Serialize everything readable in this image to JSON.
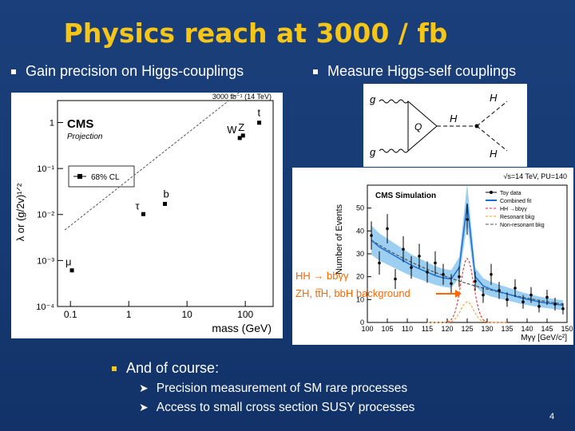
{
  "slide": {
    "title": "Physics reach at 3000 / fb",
    "bullet_left": "Gain precision on Higgs-couplings",
    "bullet_right": "Measure Higgs-self couplings",
    "main_bullet": "And of course:",
    "sub_bullets": [
      "Precision measurement of SM rare processes",
      "Access to small cross section SUSY processes"
    ],
    "page_number": "4"
  },
  "colors": {
    "title": "#f5c518",
    "background": "#1b3f7a",
    "annotation": "#ff6600"
  },
  "coupling_plot": {
    "header": "3000 fb⁻¹ (14 TeV)",
    "brand": "CMS",
    "subtitle": "Projection",
    "legend": "68% CL",
    "ylabel": "λ or (g/2v)¹ᐟ²",
    "xlabel": "mass (GeV)",
    "x_ticks": [
      "0.1",
      "1",
      "10",
      "100"
    ],
    "y_ticks": [
      "1",
      "10⁻¹",
      "10⁻²",
      "10⁻³",
      "10⁻⁴"
    ]
  },
  "feynman": {
    "g_top": "g",
    "g_bottom": "g",
    "quark": "Q",
    "h_mid": "H",
    "h_top": "H",
    "h_bottom": "H"
  },
  "sim_plot": {
    "header": "√s=14 TeV, PU=140",
    "brand": "CMS Simulation",
    "ylabel": "Number of Events",
    "xlabel": "Mγγ [GeV/c²]",
    "legend": [
      "Toy data",
      "Combined fit",
      "HH →bbγγ",
      "Resonant bkg",
      "Non-resonant bkg"
    ],
    "annotation_1": "HH → bbγγ",
    "annotation_2": "ZH, tt̅H, bbH background",
    "x_ticks": [
      "100",
      "105",
      "110",
      "115",
      "120",
      "125",
      "130",
      "135",
      "140",
      "145",
      "150"
    ],
    "y_ticks": [
      "0",
      "10",
      "20",
      "30",
      "40",
      "50"
    ]
  },
  "chart_data": [
    {
      "type": "scatter",
      "title": "CMS Projection 3000 fb-1 (14 TeV)",
      "xlabel": "mass (GeV)",
      "ylabel": "lambda or (g/2v)^1/2",
      "xscale": "log",
      "yscale": "log",
      "xlim": [
        0.06,
        300
      ],
      "ylim": [
        0.0001,
        3
      ],
      "points": [
        {
          "label": "μ",
          "x": 0.106,
          "y": 0.00061
        },
        {
          "label": "τ",
          "x": 1.78,
          "y": 0.0102
        },
        {
          "label": "b",
          "x": 4.18,
          "y": 0.017
        },
        {
          "label": "W",
          "x": 80.4,
          "y": 0.46
        },
        {
          "label": "Z",
          "x": 91.2,
          "y": 0.52
        },
        {
          "label": "t",
          "x": 173,
          "y": 0.99
        }
      ],
      "legend": "68% CL"
    },
    {
      "type": "scatter",
      "title": "CMS Simulation",
      "xlabel": "Mγγ [GeV/c²]",
      "ylabel": "Number of Events",
      "xlim": [
        100,
        150
      ],
      "ylim": [
        0,
        60
      ],
      "x": [
        101,
        103,
        105,
        107,
        109,
        111,
        113,
        115,
        117,
        119,
        121,
        123,
        125,
        127,
        129,
        131,
        133,
        135,
        137,
        139,
        141,
        143,
        145,
        147,
        149
      ],
      "values": [
        38,
        26,
        41,
        19,
        32,
        24,
        29,
        22,
        26,
        21,
        17,
        20,
        45,
        18,
        12,
        21,
        14,
        10,
        15,
        9,
        12,
        7,
        11,
        8,
        6
      ],
      "fit": [
        36,
        33,
        31,
        29,
        27,
        25,
        23.5,
        22,
        20.5,
        19.5,
        19,
        24,
        52,
        20,
        16,
        14.5,
        13.5,
        12.5,
        11.5,
        10.5,
        9.8,
        9,
        8.5,
        8,
        7.5
      ]
    }
  ]
}
